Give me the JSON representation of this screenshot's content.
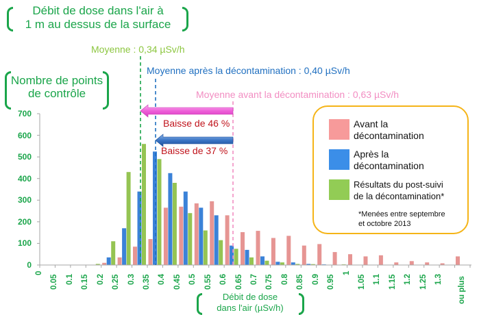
{
  "chart_data": {
    "type": "bar",
    "title": "Débit de dose dans l'air à 1 m au dessus de la surface",
    "xlabel": "Débit de dose dans l'air (µSv/h)",
    "ylabel": "Nombre de points de contrôle",
    "ylim": [
      0,
      700
    ],
    "yticks": [
      0,
      100,
      200,
      300,
      400,
      500,
      600,
      700
    ],
    "categories": [
      "0",
      "0.05",
      "0.1",
      "0.15",
      "0.2",
      "0.25",
      "0.3",
      "0.35",
      "0.4",
      "0.45",
      "0.5",
      "0.55",
      "0.6",
      "0.65",
      "0.7",
      "0.75",
      "0.8",
      "0.85",
      "0.9",
      "0.95",
      "1",
      "1.05",
      "1.1",
      "1.15",
      "1.2",
      "1.25",
      "1.3",
      "ou plus"
    ],
    "series": [
      {
        "name": "Avant la décontamination",
        "color": "#e69593",
        "values": [
          0,
          0,
          0,
          0,
          10,
          35,
          85,
          120,
          265,
          270,
          285,
          295,
          230,
          152,
          158,
          125,
          135,
          90,
          97,
          60,
          50,
          40,
          45,
          12,
          18,
          12,
          8,
          40
        ]
      },
      {
        "name": "Après la décontamination",
        "color": "#3b82d8",
        "values": [
          0,
          0,
          0,
          0,
          35,
          170,
          340,
          525,
          425,
          340,
          265,
          230,
          90,
          70,
          40,
          15,
          12,
          5,
          3,
          0,
          0,
          0,
          0,
          0,
          0,
          0,
          0,
          0
        ]
      },
      {
        "name": "Résultats du post-suivi de la décontamination*",
        "color": "#95c453",
        "values": [
          0,
          0,
          0,
          5,
          110,
          430,
          560,
          490,
          380,
          240,
          160,
          115,
          75,
          35,
          20,
          12,
          5,
          4,
          0,
          3,
          0,
          0,
          0,
          0,
          0,
          0,
          0,
          0
        ]
      }
    ],
    "annotations": [
      {
        "text": "Moyenne : 0,34 µSv/h",
        "x": 0.34,
        "color": "#8cc63f"
      },
      {
        "text": "Moyenne après la décontamination : 0,40 µSv/h",
        "x": 0.4,
        "color": "#1f6fc0"
      },
      {
        "text": "Moyenne avant la décontamination : 0,63 µSv/h",
        "x": 0.63,
        "color": "#f28dc2"
      },
      {
        "text": "Baisse de 46 %",
        "color": "#c0141c"
      },
      {
        "text": "Baisse de 37 %",
        "color": "#c0141c"
      }
    ],
    "legend_position": "upper right",
    "grid": false
  },
  "header": {
    "title_line1": "Débit de dose dans l'air à",
    "title_line2": "1 m au dessus de la surface"
  },
  "axis": {
    "y_title_line1": "Nombre de points",
    "y_title_line2": "de contrôle",
    "x_title_line1": "Débit de dose",
    "x_title_line2": "dans l'air (µSv/h)"
  },
  "means": {
    "post": "Moyenne : 0,34 µSv/h",
    "after": "Moyenne après la décontamination : 0,40 µSv/h",
    "before": "Moyenne avant la décontamination : 0,63 µSv/h"
  },
  "reductions": {
    "r46": "Baisse de 46 %",
    "r37": "Baisse de 37 %"
  },
  "legend": {
    "before_l1": "Avant la",
    "before_l2": "décontamination",
    "after_l1": "Après la",
    "after_l2": "décontamination",
    "post_l1": "Résultats du post-suivi",
    "post_l2": "de la décontamination*",
    "note_l1": "*Menées entre septembre",
    "note_l2": "et octobre 2013"
  }
}
